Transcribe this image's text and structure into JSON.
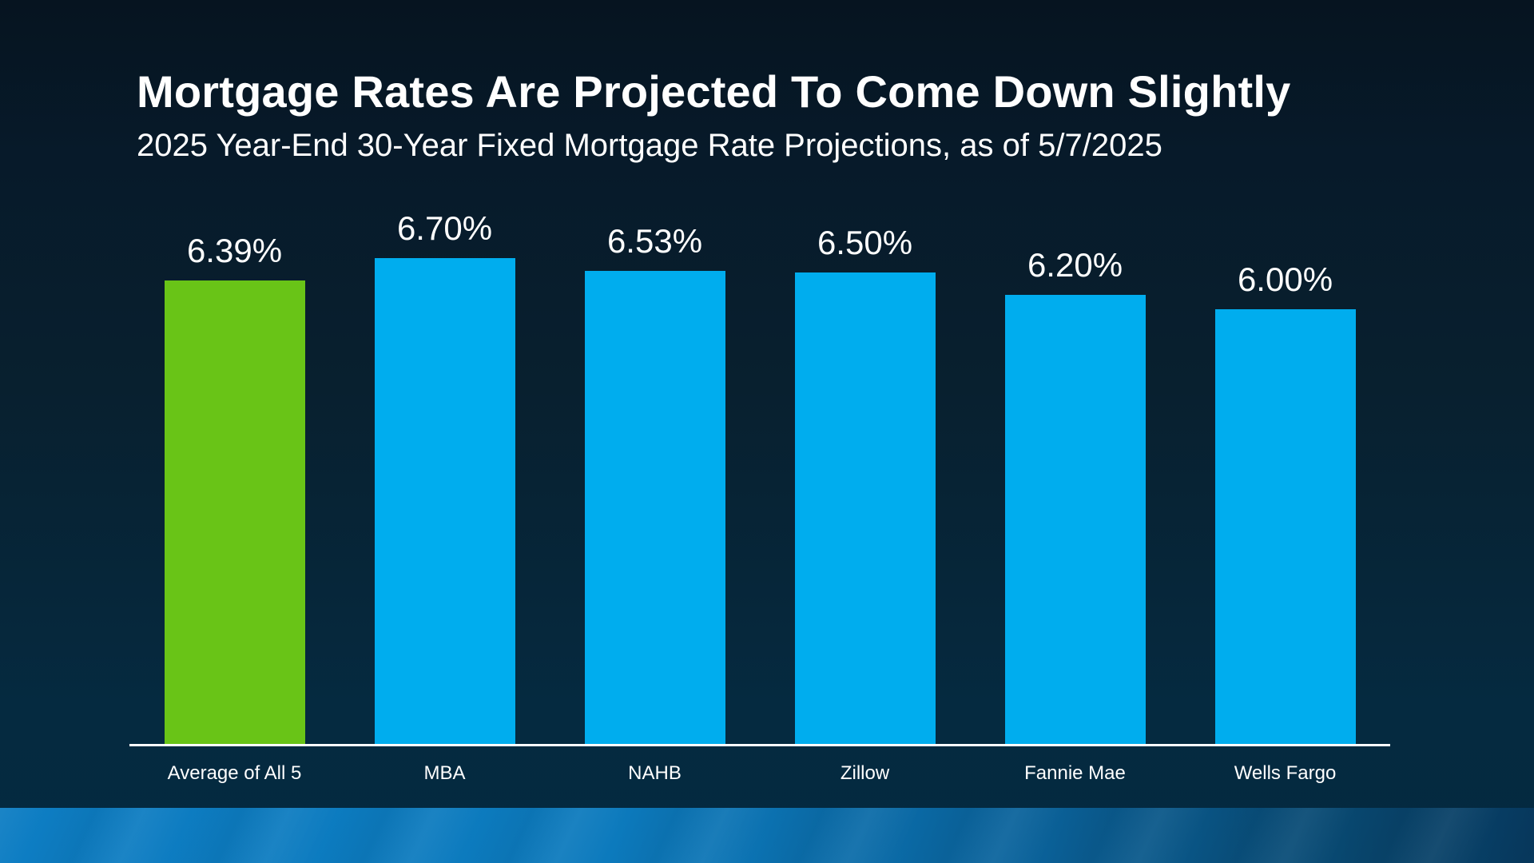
{
  "header": {
    "title": "Mortgage Rates Are Projected To Come Down Slightly",
    "subtitle": "2025 Year-End 30-Year Fixed Mortgage Rate Projections, as of 5/7/2025"
  },
  "chart_data": {
    "type": "bar",
    "title": "Mortgage Rates Are Projected To Come Down Slightly",
    "subtitle": "2025 Year-End 30-Year Fixed Mortgage Rate Projections, as of 5/7/2025",
    "categories": [
      "Average of All 5",
      "MBA",
      "NAHB",
      "Zillow",
      "Fannie Mae",
      "Wells Fargo"
    ],
    "values": [
      6.39,
      6.7,
      6.53,
      6.5,
      6.2,
      6.0
    ],
    "value_labels": [
      "6.39%",
      "6.70%",
      "6.53%",
      "6.50%",
      "6.20%",
      "6.00%"
    ],
    "ylim": [
      0,
      6.7
    ],
    "grid": false,
    "legend": "none",
    "highlight_index": 0,
    "colors": {
      "highlight_bar": "#69c417",
      "default_bar": "#00adee",
      "axis_line": "#ffffff",
      "label_text": "#ffffff"
    }
  },
  "theme": {
    "background_top": "#061420",
    "background_bottom": "#042940",
    "footer_band_left": "#0d7dc3",
    "footer_band_right": "#073a60"
  }
}
